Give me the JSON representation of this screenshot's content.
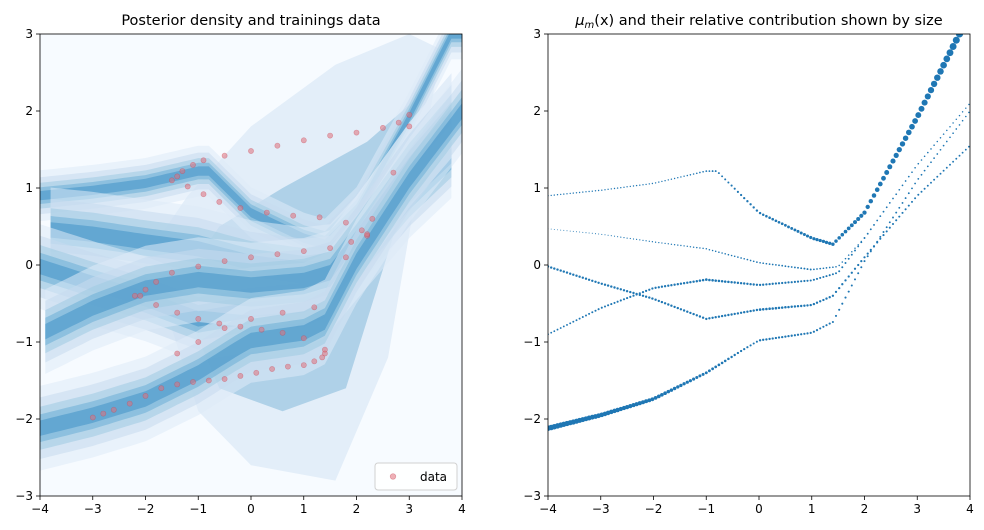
{
  "chart_data": [
    {
      "type": "scatter",
      "title": "Posterior density and trainings data",
      "xlim": [
        -4,
        4
      ],
      "ylim": [
        -3,
        3
      ],
      "xticks": [
        "−4",
        "−3",
        "−2",
        "−1",
        "0",
        "1",
        "2",
        "3",
        "4"
      ],
      "yticks": [
        "−3",
        "−2",
        "−1",
        "0",
        "1",
        "2",
        "3"
      ],
      "legend": {
        "label": "data",
        "placement": "lower-right"
      },
      "background": "filled contour posterior density (Blues colormap)",
      "colors": {
        "data": "#e0707a",
        "density_light": "#f7fbff",
        "density_dark": "#2b7bba"
      },
      "series": [
        {
          "name": "data",
          "x": [
            -3.0,
            -2.8,
            -2.6,
            -2.3,
            -2.0,
            -1.7,
            -1.4,
            -1.1,
            -0.8,
            -0.5,
            -0.2,
            0.1,
            0.4,
            0.7,
            1.0,
            1.2,
            1.35,
            1.4,
            -1.5,
            -1.3,
            -1.1,
            -0.9,
            -0.5,
            0.0,
            0.5,
            1.0,
            1.5,
            2.0,
            2.5,
            2.8,
            3.0,
            -1.4,
            -1.2,
            -0.9,
            -0.6,
            -0.2,
            0.3,
            0.8,
            1.3,
            1.8,
            2.1,
            2.2,
            -2.2,
            -2.0,
            -1.8,
            -1.5,
            -1.0,
            -0.5,
            0.0,
            0.5,
            1.0,
            1.5,
            1.9,
            2.2,
            -2.1,
            -1.8,
            -1.4,
            -1.0,
            -0.6,
            -0.2,
            0.2,
            0.6,
            1.0,
            1.4,
            -1.4,
            -1.0,
            -0.5,
            0.0,
            0.6,
            1.2,
            1.8,
            2.3,
            2.7,
            3.0
          ],
          "y": [
            -1.98,
            -1.93,
            -1.88,
            -1.8,
            -1.7,
            -1.6,
            -1.55,
            -1.52,
            -1.5,
            -1.48,
            -1.44,
            -1.4,
            -1.35,
            -1.32,
            -1.3,
            -1.25,
            -1.2,
            -1.1,
            1.1,
            1.22,
            1.3,
            1.36,
            1.42,
            1.48,
            1.55,
            1.62,
            1.68,
            1.72,
            1.78,
            1.85,
            1.95,
            1.15,
            1.02,
            0.92,
            0.82,
            0.74,
            0.68,
            0.64,
            0.62,
            0.55,
            0.45,
            0.38,
            -0.4,
            -0.32,
            -0.22,
            -0.1,
            -0.02,
            0.05,
            0.1,
            0.14,
            0.18,
            0.22,
            0.3,
            0.4,
            -0.4,
            -0.52,
            -0.62,
            -0.7,
            -0.76,
            -0.8,
            -0.84,
            -0.88,
            -0.95,
            -1.15,
            -1.15,
            -1.0,
            -0.82,
            -0.7,
            -0.62,
            -0.55,
            0.1,
            0.6,
            1.2,
            1.8
          ]
        }
      ]
    },
    {
      "type": "scatter",
      "title": "μm(x) and their relative contribution shown by size",
      "title_parts": {
        "mu": "μ",
        "sub": "m",
        "rest": "(x) and their relative contribution shown by size"
      },
      "xlim": [
        -4,
        4
      ],
      "ylim": [
        -3,
        3
      ],
      "xticks": [
        "−4",
        "−3",
        "−2",
        "−1",
        "0",
        "1",
        "2",
        "3",
        "4"
      ],
      "yticks": [
        "−3",
        "−2",
        "−1",
        "0",
        "1",
        "2",
        "3"
      ],
      "colors": {
        "points": "#1f77b4"
      },
      "series": [
        {
          "x": [
            -4.0,
            -3.0,
            -2.0,
            -1.0,
            -0.8,
            0.0,
            1.0,
            1.4,
            2.0,
            3.0,
            3.8
          ],
          "y": [
            0.9,
            0.97,
            1.06,
            1.22,
            1.22,
            0.68,
            0.35,
            0.27,
            0.68,
            1.92,
            3.0
          ]
        },
        {
          "x": [
            -4.0,
            -3.0,
            -2.0,
            -1.0,
            0.0,
            1.0,
            1.5,
            2.0,
            3.0,
            4.0
          ],
          "y": [
            0.47,
            0.4,
            0.3,
            0.21,
            0.03,
            -0.06,
            -0.02,
            0.35,
            1.3,
            2.1
          ]
        },
        {
          "x": [
            -4.0,
            -3.0,
            -2.0,
            -1.0,
            0.0,
            1.0,
            1.4,
            2.0,
            3.0,
            4.0
          ],
          "y": [
            -0.02,
            -0.24,
            -0.44,
            -0.7,
            -0.58,
            -0.52,
            -0.4,
            0.1,
            0.9,
            1.55
          ]
        },
        {
          "x": [
            -4.0,
            -3.0,
            -2.0,
            -1.0,
            0.0,
            1.0,
            1.5,
            2.0,
            3.0,
            4.0
          ],
          "y": [
            -0.9,
            -0.56,
            -0.3,
            -0.19,
            -0.26,
            -0.2,
            -0.1,
            0.35,
            1.3,
            2.1
          ]
        },
        {
          "x": [
            -4.0,
            -3.0,
            -2.0,
            -1.0,
            -0.3,
            0.0,
            1.0,
            1.4,
            2.0,
            3.0,
            4.0
          ],
          "y": [
            -2.12,
            -1.95,
            -1.74,
            -1.4,
            -1.1,
            -0.98,
            -0.88,
            -0.74,
            0.05,
            1.1,
            2.0
          ]
        }
      ]
    }
  ]
}
